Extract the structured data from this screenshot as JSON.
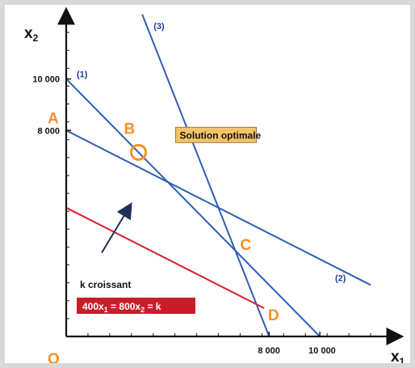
{
  "colors": {
    "axis": "#111111",
    "constraint_line": "#2f5fb3",
    "objective_line": "#d51f2f",
    "point_label": "#f5902a",
    "optimal_box_fill": "#f4c36a",
    "objective_box_fill": "#c91d2c",
    "objective_box_text": "#ffffff",
    "arrow": "#1f2f55",
    "marker": "#f5902a"
  },
  "chart_data": {
    "type": "line",
    "xlabel": {
      "main": "x",
      "sub": "1"
    },
    "ylabel": {
      "main": "x",
      "sub": "2"
    },
    "xlim": [
      0,
      12000
    ],
    "ylim": [
      0,
      12500
    ],
    "grid": false,
    "x_ticks": [
      {
        "value": 8000,
        "label": "8 000"
      },
      {
        "value": 10000,
        "label": "10 000"
      }
    ],
    "y_ticks": [
      {
        "value": 8000,
        "label": "8 000"
      },
      {
        "value": 10000,
        "label": "10 000"
      }
    ],
    "constraints": [
      {
        "label": "(1)",
        "points": [
          [
            0,
            10000
          ],
          [
            10000,
            0
          ]
        ]
      },
      {
        "label": "(2)",
        "points": [
          [
            0,
            8000
          ],
          [
            16000,
            0
          ]
        ]
      },
      {
        "label": "(3)",
        "points": [
          [
            3000,
            12500
          ],
          [
            8000,
            0
          ]
        ]
      }
    ],
    "objective_line": {
      "points": [
        [
          0,
          5000
        ],
        [
          7800,
          1100
        ]
      ],
      "equation": "400x1 = 800x2 = k",
      "equation_parts": [
        {
          "text": "400x",
          "sub": "1"
        },
        {
          "text": " = 800x",
          "sub": "2"
        },
        {
          "text": " = k",
          "sub": ""
        }
      ]
    },
    "increasing_label": "k croissant",
    "increasing_arrow": {
      "from": [
        1400,
        3250
      ],
      "to": [
        2500,
        5050
      ]
    },
    "points": [
      {
        "label": "O",
        "x": 0,
        "y": 0
      },
      {
        "label": "A",
        "x": 0,
        "y": 8000
      },
      {
        "label": "B",
        "x": 2850,
        "y": 7150
      },
      {
        "label": "C",
        "x": 6700,
        "y": 3300
      },
      {
        "label": "D",
        "x": 7800,
        "y": 1100
      }
    ],
    "optimal_solution": {
      "label": "Solution optimale",
      "x": 2850,
      "y": 7150
    }
  }
}
